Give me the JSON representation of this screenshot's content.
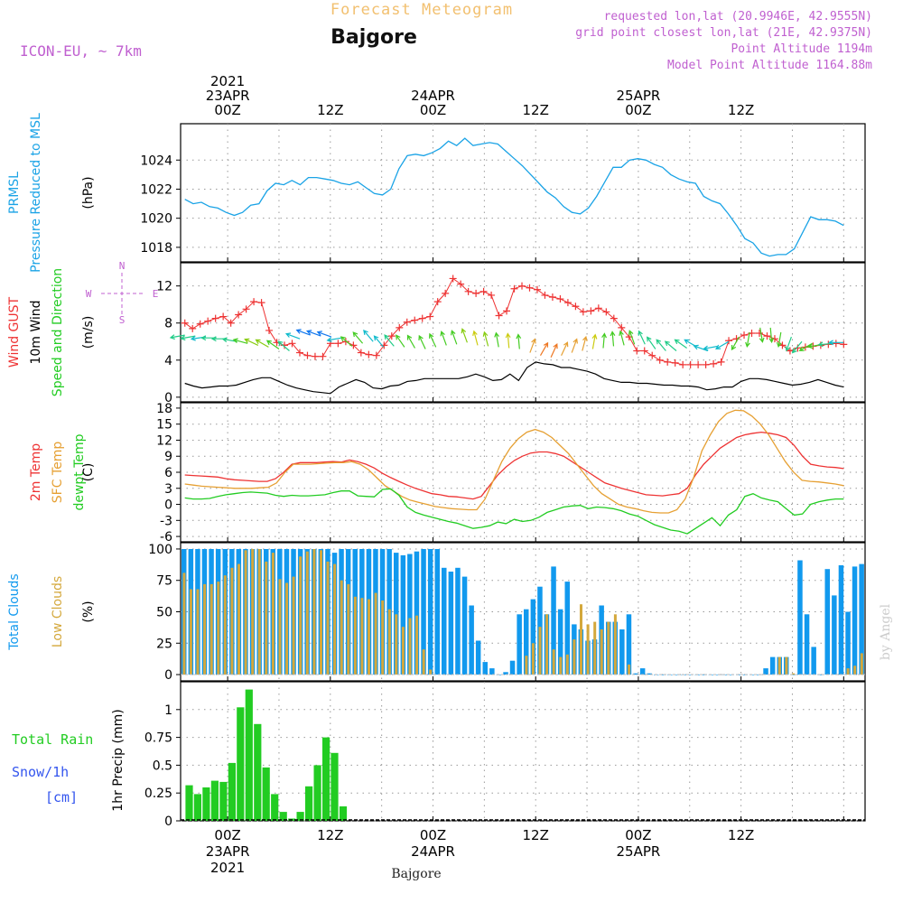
{
  "header": {
    "title": "Forecast Meteogram",
    "location": "Bajgore",
    "model": "ICON-EU, ~ 7km",
    "requested": "requested lon,lat (20.9946E, 42.9555N)",
    "grid": "grid point closest lon,lat (21E, 42.9375N)",
    "point_alt": "Point Altitude 1194m",
    "model_alt": "Model Point Altitude 1164.88m",
    "watermark": "by Angel",
    "footer_location": "Bajgore"
  },
  "colors": {
    "pressure": "#1aa3e6",
    "gust": "#ee3333",
    "wind10m": "#000000",
    "temp2m": "#ee3333",
    "sfc_temp": "#e6a033",
    "dewpt": "#22cc22",
    "total_clouds": "#1199ee",
    "low_clouds": "#d4a83c",
    "rain": "#22cc22",
    "snow": "#3355ee",
    "header_purple": "#c060d0",
    "title_orange": "#f2c070",
    "grid": "#999999"
  },
  "time_axis": {
    "top_labels": [
      {
        "hour": 0,
        "lines": [
          "2021",
          "23APR",
          "00Z"
        ]
      },
      {
        "hour": 12,
        "lines": [
          "12Z"
        ]
      },
      {
        "hour": 24,
        "lines": [
          "24APR",
          "00Z"
        ]
      },
      {
        "hour": 36,
        "lines": [
          "12Z"
        ]
      },
      {
        "hour": 48,
        "lines": [
          "25APR",
          "00Z"
        ]
      },
      {
        "hour": 60,
        "lines": [
          "12Z"
        ]
      }
    ],
    "bottom_labels": [
      {
        "hour": 0,
        "lines": [
          "00Z",
          "23APR",
          "2021"
        ]
      },
      {
        "hour": 12,
        "lines": [
          "12Z"
        ]
      },
      {
        "hour": 24,
        "lines": [
          "00Z",
          "24APR"
        ]
      },
      {
        "hour": 36,
        "lines": [
          "12Z"
        ]
      },
      {
        "hour": 48,
        "lines": [
          "00Z",
          "25APR"
        ]
      },
      {
        "hour": 60,
        "lines": [
          "12Z"
        ]
      }
    ]
  },
  "chart_data": [
    {
      "type": "line",
      "panel": "pressure",
      "left_labels": [
        "PRMSL",
        "Pressure Reduced to MSL"
      ],
      "unit": "(hPa)",
      "ylim": [
        1017,
        1026.5
      ],
      "yticks": [
        1018,
        1020,
        1022,
        1024
      ],
      "grid": true,
      "x_hours_start": -5,
      "series": [
        {
          "values": [
            1021.3,
            1021.0,
            1021.1,
            1020.8,
            1020.7,
            1020.4,
            1020.2,
            1020.4,
            1020.9,
            1021.0,
            1021.9,
            1022.4,
            1022.3,
            1022.6,
            1022.3,
            1022.8,
            1022.8,
            1022.7,
            1022.6,
            1022.4,
            1022.3,
            1022.5,
            1022.1,
            1021.7,
            1021.6,
            1022.0,
            1023.4,
            1024.3,
            1024.4,
            1024.3,
            1024.5,
            1024.8,
            1025.3,
            1025.0,
            1025.5,
            1025.0,
            1025.1,
            1025.2,
            1025.1,
            1024.6,
            1024.1,
            1023.6,
            1023.0,
            1022.4,
            1021.8,
            1021.4,
            1020.8,
            1020.4,
            1020.3,
            1020.7,
            1021.5,
            1022.5,
            1023.5,
            1023.5,
            1024.0,
            1024.1,
            1024.0,
            1023.7,
            1023.5,
            1023.0,
            1022.7,
            1022.5,
            1022.4,
            1021.5,
            1021.2,
            1021.0,
            1020.3,
            1019.5,
            1018.6,
            1018.3,
            1017.6,
            1017.4,
            1017.5,
            1017.5,
            1017.9,
            1019.0,
            1020.1,
            1019.9,
            1019.9,
            1019.8,
            1019.5
          ]
        }
      ]
    },
    {
      "type": "line",
      "panel": "wind",
      "left_labels": [
        "Wind GUST",
        "10m Wind",
        "Speed and Direction"
      ],
      "unit": "(m/s)",
      "compass": [
        "N",
        "W",
        "E",
        "S"
      ],
      "ylim": [
        -0.5,
        14.5
      ],
      "yticks": [
        0,
        4,
        8,
        12
      ],
      "grid": true,
      "x_hours_start": -5,
      "series": [
        {
          "name": "Wind GUST",
          "values": [
            8.0,
            7.4,
            7.9,
            8.2,
            8.5,
            8.7,
            8.0,
            8.9,
            9.5,
            10.3,
            10.2,
            7.2,
            5.9,
            5.6,
            5.8,
            4.8,
            4.5,
            4.4,
            4.4,
            5.8,
            5.8,
            6.0,
            5.6,
            4.8,
            4.6,
            4.5,
            5.6,
            6.6,
            7.5,
            8.1,
            8.3,
            8.5,
            8.7,
            10.3,
            11.2,
            12.8,
            12.2,
            11.4,
            11.2,
            11.4,
            11.0,
            8.8,
            9.3,
            11.7,
            12.0,
            11.8,
            11.6,
            11.0,
            10.8,
            10.6,
            10.2,
            9.8,
            9.2,
            9.3,
            9.6,
            9.2,
            8.5,
            7.5,
            6.5,
            5.0,
            5.0,
            4.5,
            4.0,
            3.8,
            3.7,
            3.5,
            3.5,
            3.5,
            3.5,
            3.6,
            3.8,
            6.1,
            6.3,
            6.7,
            6.9,
            6.9,
            6.6,
            6.3,
            5.6,
            5.0,
            5.3,
            5.4,
            5.5,
            5.6,
            5.7,
            5.8,
            5.7
          ]
        },
        {
          "name": "10m Wind",
          "values": [
            1.5,
            1.2,
            1.0,
            1.1,
            1.2,
            1.2,
            1.3,
            1.6,
            1.9,
            2.1,
            2.1,
            1.7,
            1.3,
            1.0,
            0.8,
            0.6,
            0.5,
            0.4,
            1.1,
            1.5,
            1.9,
            1.6,
            1.0,
            0.9,
            1.2,
            1.3,
            1.7,
            1.8,
            2.0,
            2.0,
            2.0,
            2.0,
            2.0,
            2.2,
            2.5,
            2.2,
            1.8,
            1.9,
            2.5,
            1.8,
            3.2,
            3.8,
            3.6,
            3.5,
            3.2,
            3.2,
            3.0,
            2.8,
            2.5,
            2.0,
            1.8,
            1.6,
            1.6,
            1.5,
            1.5,
            1.4,
            1.3,
            1.3,
            1.2,
            1.2,
            1.1,
            0.8,
            0.9,
            1.1,
            1.1,
            1.7,
            2.0,
            2.0,
            1.9,
            1.7,
            1.5,
            1.3,
            1.4,
            1.6,
            1.9,
            1.6,
            1.3,
            1.1
          ]
        }
      ],
      "wind_arrows": {
        "level": [
          6.7,
          6.6,
          6.5,
          6.4,
          6.3,
          6.0,
          5.8,
          5.6,
          5.4,
          5.2,
          5.0,
          6.3,
          6.7,
          6.6,
          6.5,
          6.4,
          5.5,
          5.8,
          6.0,
          5.4,
          5.5,
          5.4,
          5.3,
          5.2,
          5.4,
          5.6,
          5.7,
          5.9,
          5.6,
          5.5,
          5.4,
          5.3,
          5.2,
          4.8,
          4.5,
          4.3,
          4.5,
          4.8,
          5.0,
          5.2,
          5.3,
          5.5,
          5.6,
          5.7,
          5.7,
          5.2,
          5.0,
          5.0,
          5.3,
          5.4,
          5.0,
          5.5,
          6.0,
          6.5,
          7.0,
          7.5,
          7.5,
          7.0,
          6.5,
          6.0,
          5.8,
          5.7,
          5.8,
          5.9
        ],
        "direction_deg": [
          80,
          80,
          82,
          90,
          90,
          100,
          105,
          115,
          120,
          125,
          130,
          110,
          110,
          110,
          110,
          80,
          130,
          140,
          140,
          140,
          140,
          145,
          150,
          155,
          155,
          160,
          160,
          160,
          165,
          165,
          170,
          175,
          175,
          200,
          210,
          205,
          205,
          200,
          195,
          190,
          185,
          175,
          165,
          160,
          155,
          145,
          140,
          130,
          125,
          120,
          110,
          80,
          60,
          30,
          10,
          350,
          355,
          10,
          20,
          40,
          60,
          80,
          85,
          90
        ]
      }
    },
    {
      "type": "line",
      "panel": "temperature",
      "left_labels": [
        "2m Temp",
        "SFC Temp",
        "dewpt Temp"
      ],
      "unit": "(C)",
      "ylim": [
        -7,
        19
      ],
      "yticks": [
        -6,
        -3,
        0,
        3,
        6,
        9,
        12,
        15,
        18
      ],
      "grid": true,
      "x_hours_start": -5,
      "series": [
        {
          "name": "2m Temp",
          "values": [
            5.5,
            5.4,
            5.3,
            5.2,
            5.1,
            4.8,
            4.6,
            4.5,
            4.4,
            4.3,
            4.3,
            4.8,
            6.0,
            7.5,
            7.8,
            7.8,
            7.8,
            7.9,
            8.0,
            7.9,
            8.3,
            8.0,
            7.5,
            6.8,
            5.8,
            5.0,
            4.3,
            3.6,
            3.0,
            2.5,
            2.0,
            1.8,
            1.5,
            1.4,
            1.2,
            1.0,
            1.5,
            3.5,
            5.5,
            7.0,
            8.2,
            9.0,
            9.6,
            9.8,
            9.8,
            9.5,
            9.0,
            8.0,
            7.0,
            6.0,
            5.0,
            4.0,
            3.5,
            3.0,
            2.6,
            2.2,
            1.8,
            1.7,
            1.6,
            1.8,
            2.0,
            3.0,
            5.5,
            7.5,
            9.0,
            10.5,
            11.5,
            12.5,
            13.0,
            13.3,
            13.5,
            13.3,
            13.0,
            12.5,
            11.0,
            9.0,
            7.5,
            7.2,
            7.0,
            6.9,
            6.7
          ]
        },
        {
          "name": "SFC Temp",
          "values": [
            3.8,
            3.6,
            3.4,
            3.3,
            3.2,
            3.1,
            3.0,
            3.0,
            3.0,
            3.1,
            3.2,
            4.0,
            6.0,
            7.5,
            7.5,
            7.5,
            7.6,
            7.7,
            7.8,
            7.8,
            8.0,
            7.5,
            6.5,
            5.0,
            3.5,
            2.5,
            1.5,
            0.8,
            0.4,
            0.0,
            -0.4,
            -0.6,
            -0.8,
            -0.9,
            -1.0,
            -1.0,
            1.0,
            4.5,
            8.0,
            10.5,
            12.3,
            13.5,
            14.0,
            13.5,
            12.5,
            11.0,
            9.5,
            7.5,
            5.5,
            3.5,
            2.0,
            1.0,
            0.0,
            -0.5,
            -0.8,
            -1.2,
            -1.5,
            -1.6,
            -1.6,
            -1.0,
            1.0,
            5.0,
            10.0,
            13.0,
            15.5,
            17.0,
            17.6,
            17.5,
            16.5,
            15.0,
            13.0,
            10.5,
            8.0,
            6.0,
            4.5,
            4.3,
            4.2,
            4.0,
            3.8,
            3.5
          ]
        },
        {
          "name": "dewpt Temp",
          "values": [
            1.2,
            1.0,
            1.0,
            1.1,
            1.5,
            1.8,
            2.0,
            2.2,
            2.3,
            2.2,
            2.1,
            1.7,
            1.5,
            1.7,
            1.6,
            1.6,
            1.7,
            1.8,
            2.2,
            2.5,
            2.5,
            1.6,
            1.5,
            1.4,
            2.8,
            2.9,
            1.7,
            -0.5,
            -1.5,
            -2.0,
            -2.4,
            -2.8,
            -3.2,
            -3.5,
            -4.0,
            -4.5,
            -4.3,
            -4.0,
            -3.3,
            -3.6,
            -2.8,
            -3.2,
            -3.0,
            -2.4,
            -1.5,
            -1.0,
            -0.5,
            -0.3,
            -0.2,
            -0.8,
            -0.5,
            -0.6,
            -0.8,
            -1.2,
            -1.8,
            -2.2,
            -3.0,
            -3.8,
            -4.3,
            -4.8,
            -5.0,
            -5.5,
            -4.5,
            -3.5,
            -2.5,
            -4.0,
            -2.0,
            -1.0,
            1.5,
            2.0,
            1.2,
            0.8,
            0.5,
            -0.8,
            -2.0,
            -1.8,
            0.0,
            0.5,
            0.8,
            1.0,
            1.0
          ]
        }
      ]
    },
    {
      "type": "bar",
      "panel": "clouds",
      "left_labels": [
        "Total Clouds",
        "Low Clouds"
      ],
      "unit": "(%)",
      "ylim": [
        -5,
        105
      ],
      "yticks": [
        0,
        25,
        50,
        75,
        100
      ],
      "grid": true,
      "x_hours_start": -5,
      "series": [
        {
          "name": "Total Clouds",
          "values": [
            100,
            100,
            100,
            100,
            100,
            100,
            100,
            100,
            100,
            100,
            100,
            100,
            100,
            100,
            100,
            100,
            100,
            100,
            100,
            100,
            100,
            100,
            97,
            100,
            100,
            100,
            100,
            100,
            100,
            100,
            100,
            97,
            95,
            96,
            98,
            100,
            100,
            100,
            85,
            82,
            85,
            78,
            55,
            27,
            10,
            5,
            0,
            2,
            11,
            48,
            52,
            60,
            70,
            48,
            86,
            52,
            74,
            40,
            36,
            27,
            28,
            55,
            42,
            42,
            36,
            48,
            1,
            5,
            1,
            0,
            0,
            0,
            0,
            0,
            0,
            0,
            0,
            0,
            0,
            0,
            0,
            0,
            0,
            0,
            0,
            5,
            14,
            14,
            14,
            0,
            91,
            48,
            22,
            0,
            84,
            63,
            87,
            50,
            86,
            88
          ]
        },
        {
          "name": "Low Clouds",
          "values": [
            81,
            68,
            68,
            72,
            72,
            74,
            79,
            85,
            88,
            99,
            100,
            100,
            90,
            97,
            76,
            73,
            78,
            94,
            98,
            100,
            99,
            90,
            88,
            75,
            72,
            62,
            61,
            60,
            65,
            59,
            52,
            48,
            38,
            45,
            47,
            20,
            4,
            0,
            0,
            0,
            0,
            0,
            0,
            0,
            0,
            0,
            0,
            0,
            0,
            0,
            15,
            25,
            38,
            48,
            20,
            14,
            16,
            28,
            56,
            40,
            42,
            36,
            42,
            48,
            0,
            8,
            0,
            0,
            0,
            0,
            0,
            0,
            0,
            0,
            0,
            0,
            0,
            0,
            0,
            0,
            0,
            0,
            0,
            0,
            0,
            0,
            0,
            14,
            14,
            1,
            0,
            0,
            0,
            0,
            0,
            0,
            0,
            5,
            7,
            17
          ]
        }
      ]
    },
    {
      "type": "bar",
      "panel": "precip",
      "left_labels": [
        "Total  Rain",
        "Snow/1h",
        "[cm]"
      ],
      "unit": "1hr Precip (mm)",
      "ylim": [
        0,
        1.25
      ],
      "yticks": [
        0,
        0.25,
        0.5,
        0.75,
        1
      ],
      "grid": true,
      "x_hours_start": -5,
      "series": [
        {
          "name": "Total Rain",
          "values": [
            0.32,
            0.24,
            0.3,
            0.36,
            0.35,
            0.52,
            1.02,
            1.18,
            0.87,
            0.48,
            0.24,
            0.08,
            0.02,
            0.08,
            0.31,
            0.5,
            0.75,
            0.61,
            0.13
          ]
        }
      ]
    }
  ]
}
